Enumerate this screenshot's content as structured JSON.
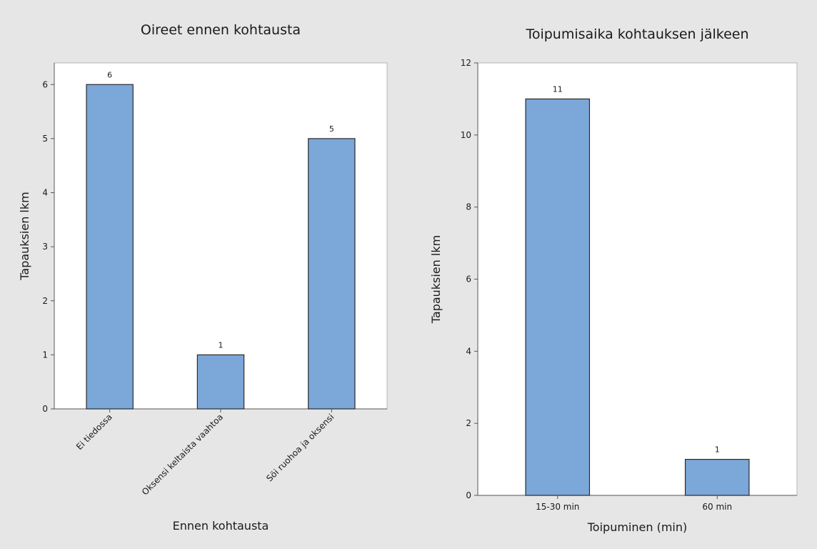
{
  "chart_data": [
    {
      "type": "bar",
      "title": "Oireet ennen kohtausta",
      "xlabel": "Ennen kohtausta",
      "ylabel": "Tapauksien lkm",
      "categories": [
        "Ei tiedossa",
        "Oksensi keltaista vaahtoa",
        "Söi ruohoa ja oksensi"
      ],
      "values": [
        6,
        1,
        5
      ],
      "data_labels": [
        "6",
        "1",
        "5"
      ],
      "ylim": [
        0,
        6.4
      ],
      "yticks": [
        0,
        1,
        2,
        3,
        4,
        5,
        6
      ],
      "tick_rotation": -45,
      "bar_color": "#7ba7d9",
      "grid": false,
      "legend": "none"
    },
    {
      "type": "bar",
      "title": "Toipumisaika kohtauksen jälkeen",
      "xlabel": "Toipuminen (min)",
      "ylabel": "Tapauksien lkm",
      "categories": [
        "15-30 min",
        "60 min"
      ],
      "values": [
        11,
        1
      ],
      "data_labels": [
        "11",
        "1"
      ],
      "ylim": [
        0,
        12
      ],
      "yticks": [
        0,
        2,
        4,
        6,
        8,
        10,
        12
      ],
      "tick_rotation": 0,
      "bar_color": "#7ba7d9",
      "grid": false,
      "legend": "none"
    }
  ],
  "colors": {
    "background": "#e6e6e6",
    "plot_area": "#ffffff",
    "bar_stroke": "#2b2b2b",
    "axis": "#555555"
  }
}
